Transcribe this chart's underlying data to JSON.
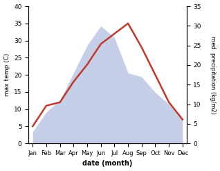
{
  "months": [
    "Jan",
    "Feb",
    "Mar",
    "Apr",
    "May",
    "Jun",
    "Jul",
    "Aug",
    "Sep",
    "Oct",
    "Nov",
    "Dec"
  ],
  "temperature": [
    5,
    11,
    12,
    18,
    23,
    29,
    32,
    35,
    28,
    20,
    12,
    7
  ],
  "precipitation": [
    3,
    8,
    11,
    18,
    25,
    30,
    27,
    18,
    17,
    13,
    10,
    6
  ],
  "temp_color": "#c0392b",
  "precip_color": "#c5cfe8",
  "ylabel_left": "max temp (C)",
  "ylabel_right": "med. precipitation (kg/m2)",
  "xlabel": "date (month)",
  "ylim_left": [
    0,
    40
  ],
  "ylim_right": [
    0,
    35
  ],
  "temp_lw": 1.8,
  "bg_color": "#ffffff"
}
